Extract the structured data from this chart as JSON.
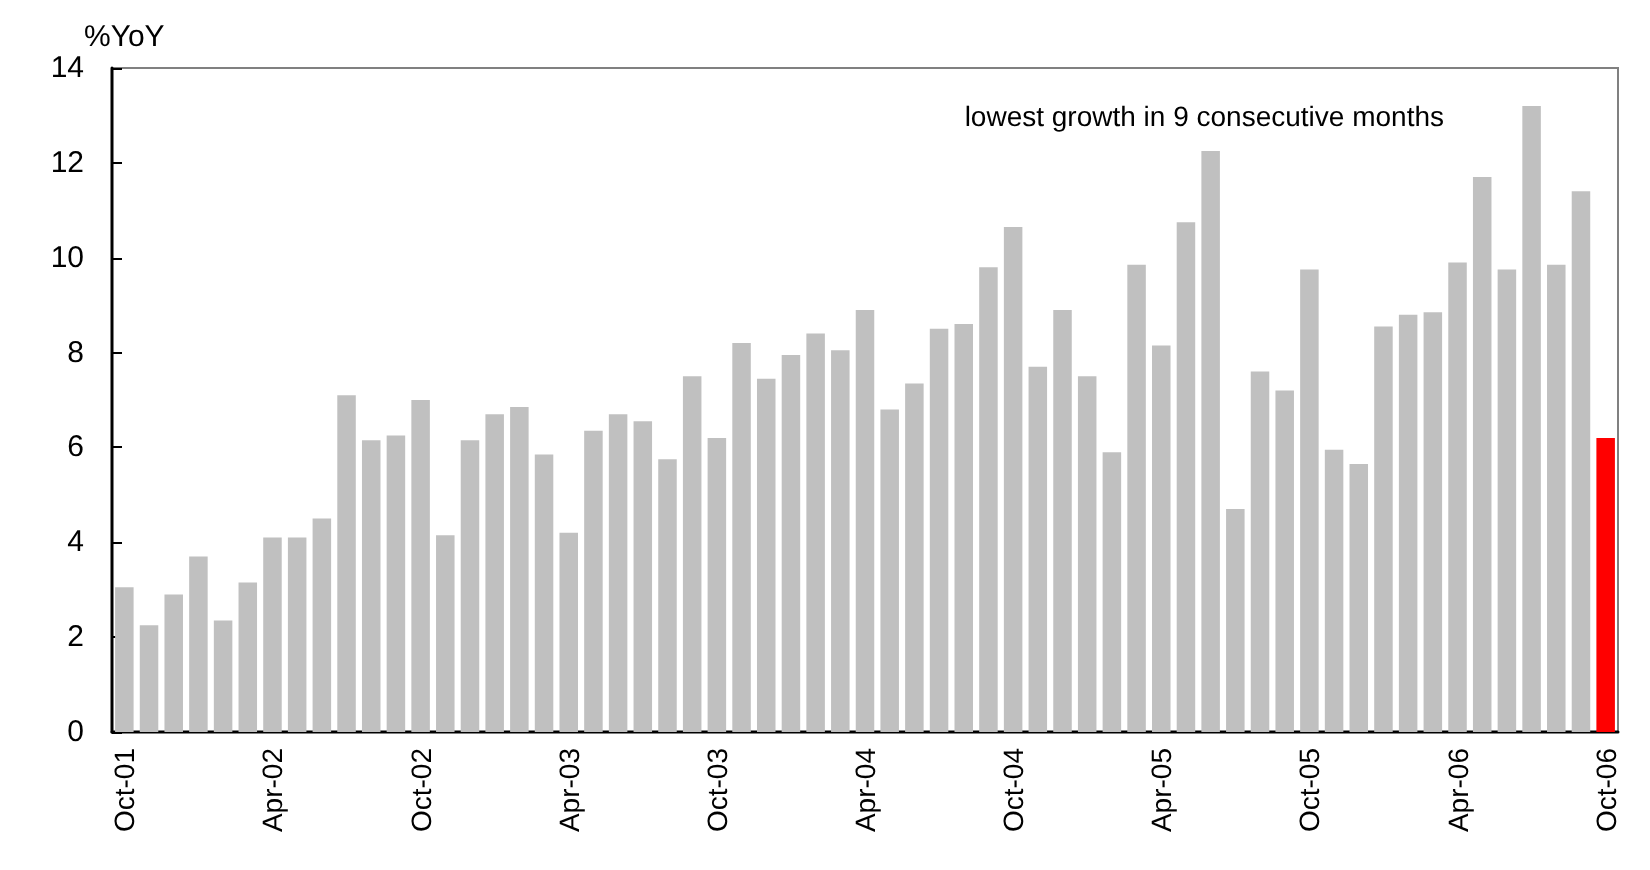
{
  "chart_data": {
    "type": "bar",
    "ylabel": "%YoY",
    "categories": [
      "Oct-01",
      null,
      null,
      null,
      null,
      null,
      "Apr-02",
      null,
      null,
      null,
      null,
      null,
      "Oct-02",
      null,
      null,
      null,
      null,
      null,
      "Apr-03",
      null,
      null,
      null,
      null,
      null,
      "Oct-03",
      null,
      null,
      null,
      null,
      null,
      "Apr-04",
      null,
      null,
      null,
      null,
      null,
      "Oct-04",
      null,
      null,
      null,
      null,
      null,
      "Apr-05",
      null,
      null,
      null,
      null,
      null,
      "Oct-05",
      null,
      null,
      null,
      null,
      null,
      "Apr-06",
      null,
      null,
      null,
      null,
      null,
      "Oct-06"
    ],
    "values": [
      3.05,
      2.25,
      2.9,
      3.7,
      2.35,
      3.15,
      4.1,
      4.1,
      4.5,
      7.1,
      6.15,
      6.25,
      7.0,
      4.15,
      6.15,
      6.7,
      6.85,
      5.85,
      4.2,
      6.35,
      6.7,
      6.55,
      5.75,
      7.5,
      6.2,
      8.2,
      7.45,
      7.95,
      8.4,
      8.05,
      8.9,
      6.8,
      7.35,
      8.5,
      8.6,
      9.8,
      10.65,
      7.7,
      8.9,
      7.5,
      5.9,
      9.85,
      8.15,
      10.75,
      12.25,
      4.7,
      7.6,
      7.2,
      9.75,
      5.95,
      5.65,
      8.55,
      8.8,
      8.85,
      9.9,
      11.7,
      9.75,
      13.2,
      9.85,
      11.4,
      6.2
    ],
    "colors": [
      "#c0c0c0",
      "#c0c0c0",
      "#c0c0c0",
      "#c0c0c0",
      "#c0c0c0",
      "#c0c0c0",
      "#c0c0c0",
      "#c0c0c0",
      "#c0c0c0",
      "#c0c0c0",
      "#c0c0c0",
      "#c0c0c0",
      "#c0c0c0",
      "#c0c0c0",
      "#c0c0c0",
      "#c0c0c0",
      "#c0c0c0",
      "#c0c0c0",
      "#c0c0c0",
      "#c0c0c0",
      "#c0c0c0",
      "#c0c0c0",
      "#c0c0c0",
      "#c0c0c0",
      "#c0c0c0",
      "#c0c0c0",
      "#c0c0c0",
      "#c0c0c0",
      "#c0c0c0",
      "#c0c0c0",
      "#c0c0c0",
      "#c0c0c0",
      "#c0c0c0",
      "#c0c0c0",
      "#c0c0c0",
      "#c0c0c0",
      "#c0c0c0",
      "#c0c0c0",
      "#c0c0c0",
      "#c0c0c0",
      "#c0c0c0",
      "#c0c0c0",
      "#c0c0c0",
      "#c0c0c0",
      "#c0c0c0",
      "#c0c0c0",
      "#c0c0c0",
      "#c0c0c0",
      "#c0c0c0",
      "#c0c0c0",
      "#c0c0c0",
      "#c0c0c0",
      "#c0c0c0",
      "#c0c0c0",
      "#c0c0c0",
      "#c0c0c0",
      "#c0c0c0",
      "#c0c0c0",
      "#c0c0c0",
      "#c0c0c0",
      "#ff0000"
    ],
    "ylim": [
      0,
      14
    ],
    "yticks": [
      0,
      2,
      4,
      6,
      8,
      10,
      12,
      14
    ],
    "annotations": [
      "lowest growth in 9 consecutive months"
    ],
    "grid": false
  }
}
